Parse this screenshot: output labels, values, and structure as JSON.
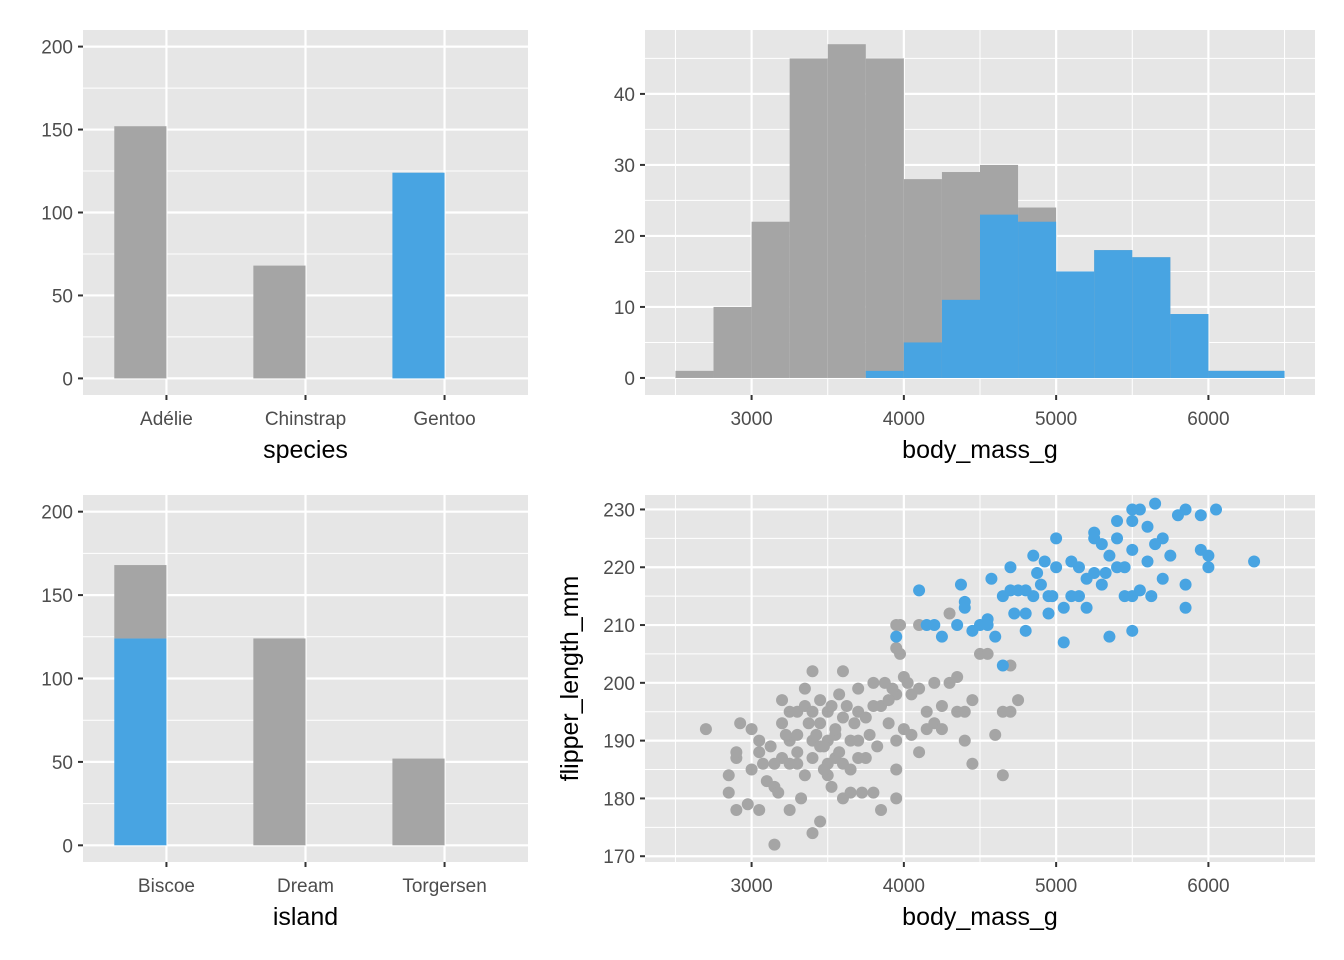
{
  "colors": {
    "panel_bg": "#e6e6e6",
    "grid": "#ffffff",
    "gray": "#a5a5a5",
    "highlight": "#48a4e2"
  },
  "chart_data": [
    {
      "type": "bar",
      "xlabel": "species",
      "categories": [
        "Adélie",
        "Chinstrap",
        "Gentoo"
      ],
      "series": [
        {
          "values": [
            152,
            68,
            0
          ],
          "color": "gray"
        },
        {
          "values": [
            0,
            0,
            124
          ],
          "color": "highlight"
        }
      ],
      "stacked": true,
      "ylim": [
        0,
        200
      ],
      "yticks": [
        0,
        50,
        100,
        150,
        200
      ],
      "grid": true
    },
    {
      "type": "histogram",
      "xlabel": "body_mass_g",
      "bin_width": 250,
      "bin_starts": [
        2500,
        2750,
        3000,
        3250,
        3500,
        3750,
        4000,
        4250,
        4500,
        4750,
        5000,
        5250,
        5500,
        5750,
        6000,
        6250
      ],
      "series": [
        {
          "values": [
            1,
            10,
            22,
            45,
            47,
            45,
            28,
            29,
            30,
            24,
            15,
            18,
            17,
            9,
            1,
            1
          ],
          "color": "gray"
        },
        {
          "values": [
            0,
            0,
            0,
            0,
            0,
            1,
            5,
            11,
            23,
            22,
            15,
            18,
            17,
            9,
            1,
            1
          ],
          "color": "highlight"
        }
      ],
      "xlim": [
        2300,
        6700
      ],
      "ylim": [
        -2.4,
        49
      ],
      "xticks": [
        3000,
        4000,
        5000,
        6000
      ],
      "yticks": [
        0,
        10,
        20,
        30,
        40
      ],
      "grid": true
    },
    {
      "type": "bar",
      "xlabel": "island",
      "categories": [
        "Biscoe",
        "Dream",
        "Torgersen"
      ],
      "series": [
        {
          "values": [
            124,
            0,
            0
          ],
          "color": "highlight"
        },
        {
          "values": [
            44,
            124,
            52
          ],
          "color": "gray"
        }
      ],
      "stacked": true,
      "ylim": [
        0,
        200
      ],
      "yticks": [
        0,
        50,
        100,
        150,
        200
      ],
      "grid": true
    },
    {
      "type": "scatter",
      "xlabel": "body_mass_g",
      "ylabel": "flipper_length_mm",
      "xlim": [
        2300,
        6700
      ],
      "ylim": [
        169,
        232.5
      ],
      "xticks": [
        3000,
        4000,
        5000,
        6000
      ],
      "yticks": [
        170,
        180,
        190,
        200,
        210,
        220,
        230
      ],
      "grid": true,
      "series": [
        {
          "color": "gray",
          "points": [
            [
              2700,
              192
            ],
            [
              2850,
              184
            ],
            [
              2850,
              181
            ],
            [
              2900,
              178
            ],
            [
              2900,
              187
            ],
            [
              2900,
              188
            ],
            [
              2925,
              193
            ],
            [
              2975,
              179
            ],
            [
              3000,
              192
            ],
            [
              3000,
              185
            ],
            [
              3050,
              190
            ],
            [
              3050,
              188
            ],
            [
              3075,
              186
            ],
            [
              3100,
              183
            ],
            [
              3150,
              172
            ],
            [
              3150,
              182
            ],
            [
              3175,
              181
            ],
            [
              3200,
              187
            ],
            [
              3200,
              193
            ],
            [
              3250,
              178
            ],
            [
              3250,
              190
            ],
            [
              3250,
              195
            ],
            [
              3300,
              186
            ],
            [
              3300,
              191
            ],
            [
              3300,
              195
            ],
            [
              3325,
              180
            ],
            [
              3350,
              196
            ],
            [
              3350,
              199
            ],
            [
              3350,
              184
            ],
            [
              3400,
              187
            ],
            [
              3400,
              190
            ],
            [
              3400,
              195
            ],
            [
              3400,
              174
            ],
            [
              3450,
              176
            ],
            [
              3450,
              189
            ],
            [
              3450,
              193
            ],
            [
              3450,
              197
            ],
            [
              3500,
              184
            ],
            [
              3500,
              190
            ],
            [
              3500,
              195
            ],
            [
              3525,
              182
            ],
            [
              3550,
              187
            ],
            [
              3550,
              191
            ],
            [
              3575,
              198
            ],
            [
              3600,
              180
            ],
            [
              3600,
              186
            ],
            [
              3600,
              194
            ],
            [
              3650,
              181
            ],
            [
              3650,
              185
            ],
            [
              3700,
              190
            ],
            [
              3700,
              195
            ],
            [
              3700,
              199
            ],
            [
              3725,
              181
            ],
            [
              3750,
              187
            ],
            [
              3775,
              191
            ],
            [
              3800,
              196
            ],
            [
              3800,
              181
            ],
            [
              3850,
              178
            ],
            [
              3875,
              200
            ],
            [
              3900,
              193
            ],
            [
              3950,
              180
            ],
            [
              3950,
              185
            ],
            [
              3950,
              190
            ],
            [
              3950,
              198
            ],
            [
              3950,
              210
            ],
            [
              3950,
              206
            ],
            [
              3975,
              210
            ],
            [
              3975,
              205
            ],
            [
              4000,
              201
            ],
            [
              4050,
              191
            ],
            [
              4050,
              198
            ],
            [
              4100,
              188
            ],
            [
              4100,
              210
            ],
            [
              4150,
              195
            ],
            [
              4200,
              193
            ],
            [
              4250,
              196
            ],
            [
              4300,
              200
            ],
            [
              4350,
              195
            ],
            [
              4400,
              190
            ],
            [
              4450,
              186
            ],
            [
              4450,
              197
            ],
            [
              4500,
              205
            ],
            [
              4550,
              205
            ],
            [
              4600,
              191
            ],
            [
              4650,
              184
            ],
            [
              4700,
              203
            ],
            [
              4750,
              197
            ],
            [
              4300,
              212
            ],
            [
              4150,
              192
            ],
            [
              3600,
              202
            ],
            [
              3400,
              202
            ],
            [
              3200,
              197
            ],
            [
              3500,
              186
            ],
            [
              3300,
              188
            ],
            [
              3700,
              187
            ],
            [
              3550,
              192
            ],
            [
              3150,
              186
            ],
            [
              3250,
              186
            ],
            [
              3425,
              191
            ],
            [
              3475,
              189
            ],
            [
              3625,
              196
            ],
            [
              3675,
              193
            ],
            [
              3750,
              194
            ],
            [
              3825,
              189
            ],
            [
              3850,
              196
            ],
            [
              3925,
              199
            ],
            [
              4000,
              192
            ],
            [
              4100,
              199
            ],
            [
              4200,
              200
            ],
            [
              4400,
              195
            ],
            [
              4350,
              201
            ],
            [
              4650,
              195
            ],
            [
              4700,
              195
            ],
            [
              4250,
              192
            ],
            [
              3050,
              178
            ],
            [
              3375,
              193
            ],
            [
              3525,
              196
            ],
            [
              3575,
              188
            ],
            [
              3650,
              190
            ],
            [
              3800,
              200
            ],
            [
              3900,
              197
            ],
            [
              4025,
              200
            ],
            [
              3475,
              185
            ],
            [
              3225,
              191
            ],
            [
              3125,
              189
            ]
          ]
        },
        {
          "color": "highlight",
          "points": [
            [
              3950,
              208
            ],
            [
              4100,
              216
            ],
            [
              4150,
              210
            ],
            [
              4200,
              210
            ],
            [
              4250,
              208
            ],
            [
              4350,
              210
            ],
            [
              4375,
              217
            ],
            [
              4400,
              213
            ],
            [
              4400,
              214
            ],
            [
              4450,
              209
            ],
            [
              4500,
              210
            ],
            [
              4550,
              211
            ],
            [
              4575,
              218
            ],
            [
              4600,
              208
            ],
            [
              4650,
              203
            ],
            [
              4650,
              215
            ],
            [
              4700,
              220
            ],
            [
              4700,
              216
            ],
            [
              4750,
              216
            ],
            [
              4800,
              212
            ],
            [
              4800,
              209
            ],
            [
              4850,
              222
            ],
            [
              4850,
              215
            ],
            [
              4900,
              217
            ],
            [
              4925,
              221
            ],
            [
              4950,
              215
            ],
            [
              5000,
              225
            ],
            [
              5000,
              220
            ],
            [
              5050,
              213
            ],
            [
              5050,
              207
            ],
            [
              5100,
              221
            ],
            [
              5150,
              215
            ],
            [
              5200,
              213
            ],
            [
              5250,
              226
            ],
            [
              5300,
              217
            ],
            [
              5300,
              224
            ],
            [
              5350,
              208
            ],
            [
              5400,
              225
            ],
            [
              5450,
              220
            ],
            [
              5450,
              215
            ],
            [
              5500,
              230
            ],
            [
              5500,
              228
            ],
            [
              5500,
              223
            ],
            [
              5500,
              215
            ],
            [
              5550,
              230
            ],
            [
              5600,
              227
            ],
            [
              5650,
              231
            ],
            [
              5650,
              224
            ],
            [
              5700,
              225
            ],
            [
              5700,
              218
            ],
            [
              5800,
              229
            ],
            [
              5850,
              230
            ],
            [
              5850,
              217
            ],
            [
              5850,
              213
            ],
            [
              5950,
              229
            ],
            [
              5950,
              223
            ],
            [
              6000,
              222
            ],
            [
              6000,
              220
            ],
            [
              6050,
              230
            ],
            [
              6300,
              221
            ],
            [
              5400,
              220
            ],
            [
              5250,
              219
            ],
            [
              5600,
              221
            ],
            [
              5150,
              220
            ],
            [
              4975,
              215
            ],
            [
              5325,
              219
            ],
            [
              5550,
              216
            ],
            [
              5750,
              222
            ],
            [
              5625,
              215
            ],
            [
              4875,
              219
            ],
            [
              4725,
              212
            ],
            [
              5100,
              215
            ],
            [
              5200,
              218
            ],
            [
              5350,
              222
            ],
            [
              4950,
              212
            ],
            [
              5500,
              209
            ],
            [
              5400,
              228
            ],
            [
              5250,
              225
            ],
            [
              4800,
              216
            ],
            [
              4550,
              210
            ]
          ]
        }
      ]
    }
  ]
}
